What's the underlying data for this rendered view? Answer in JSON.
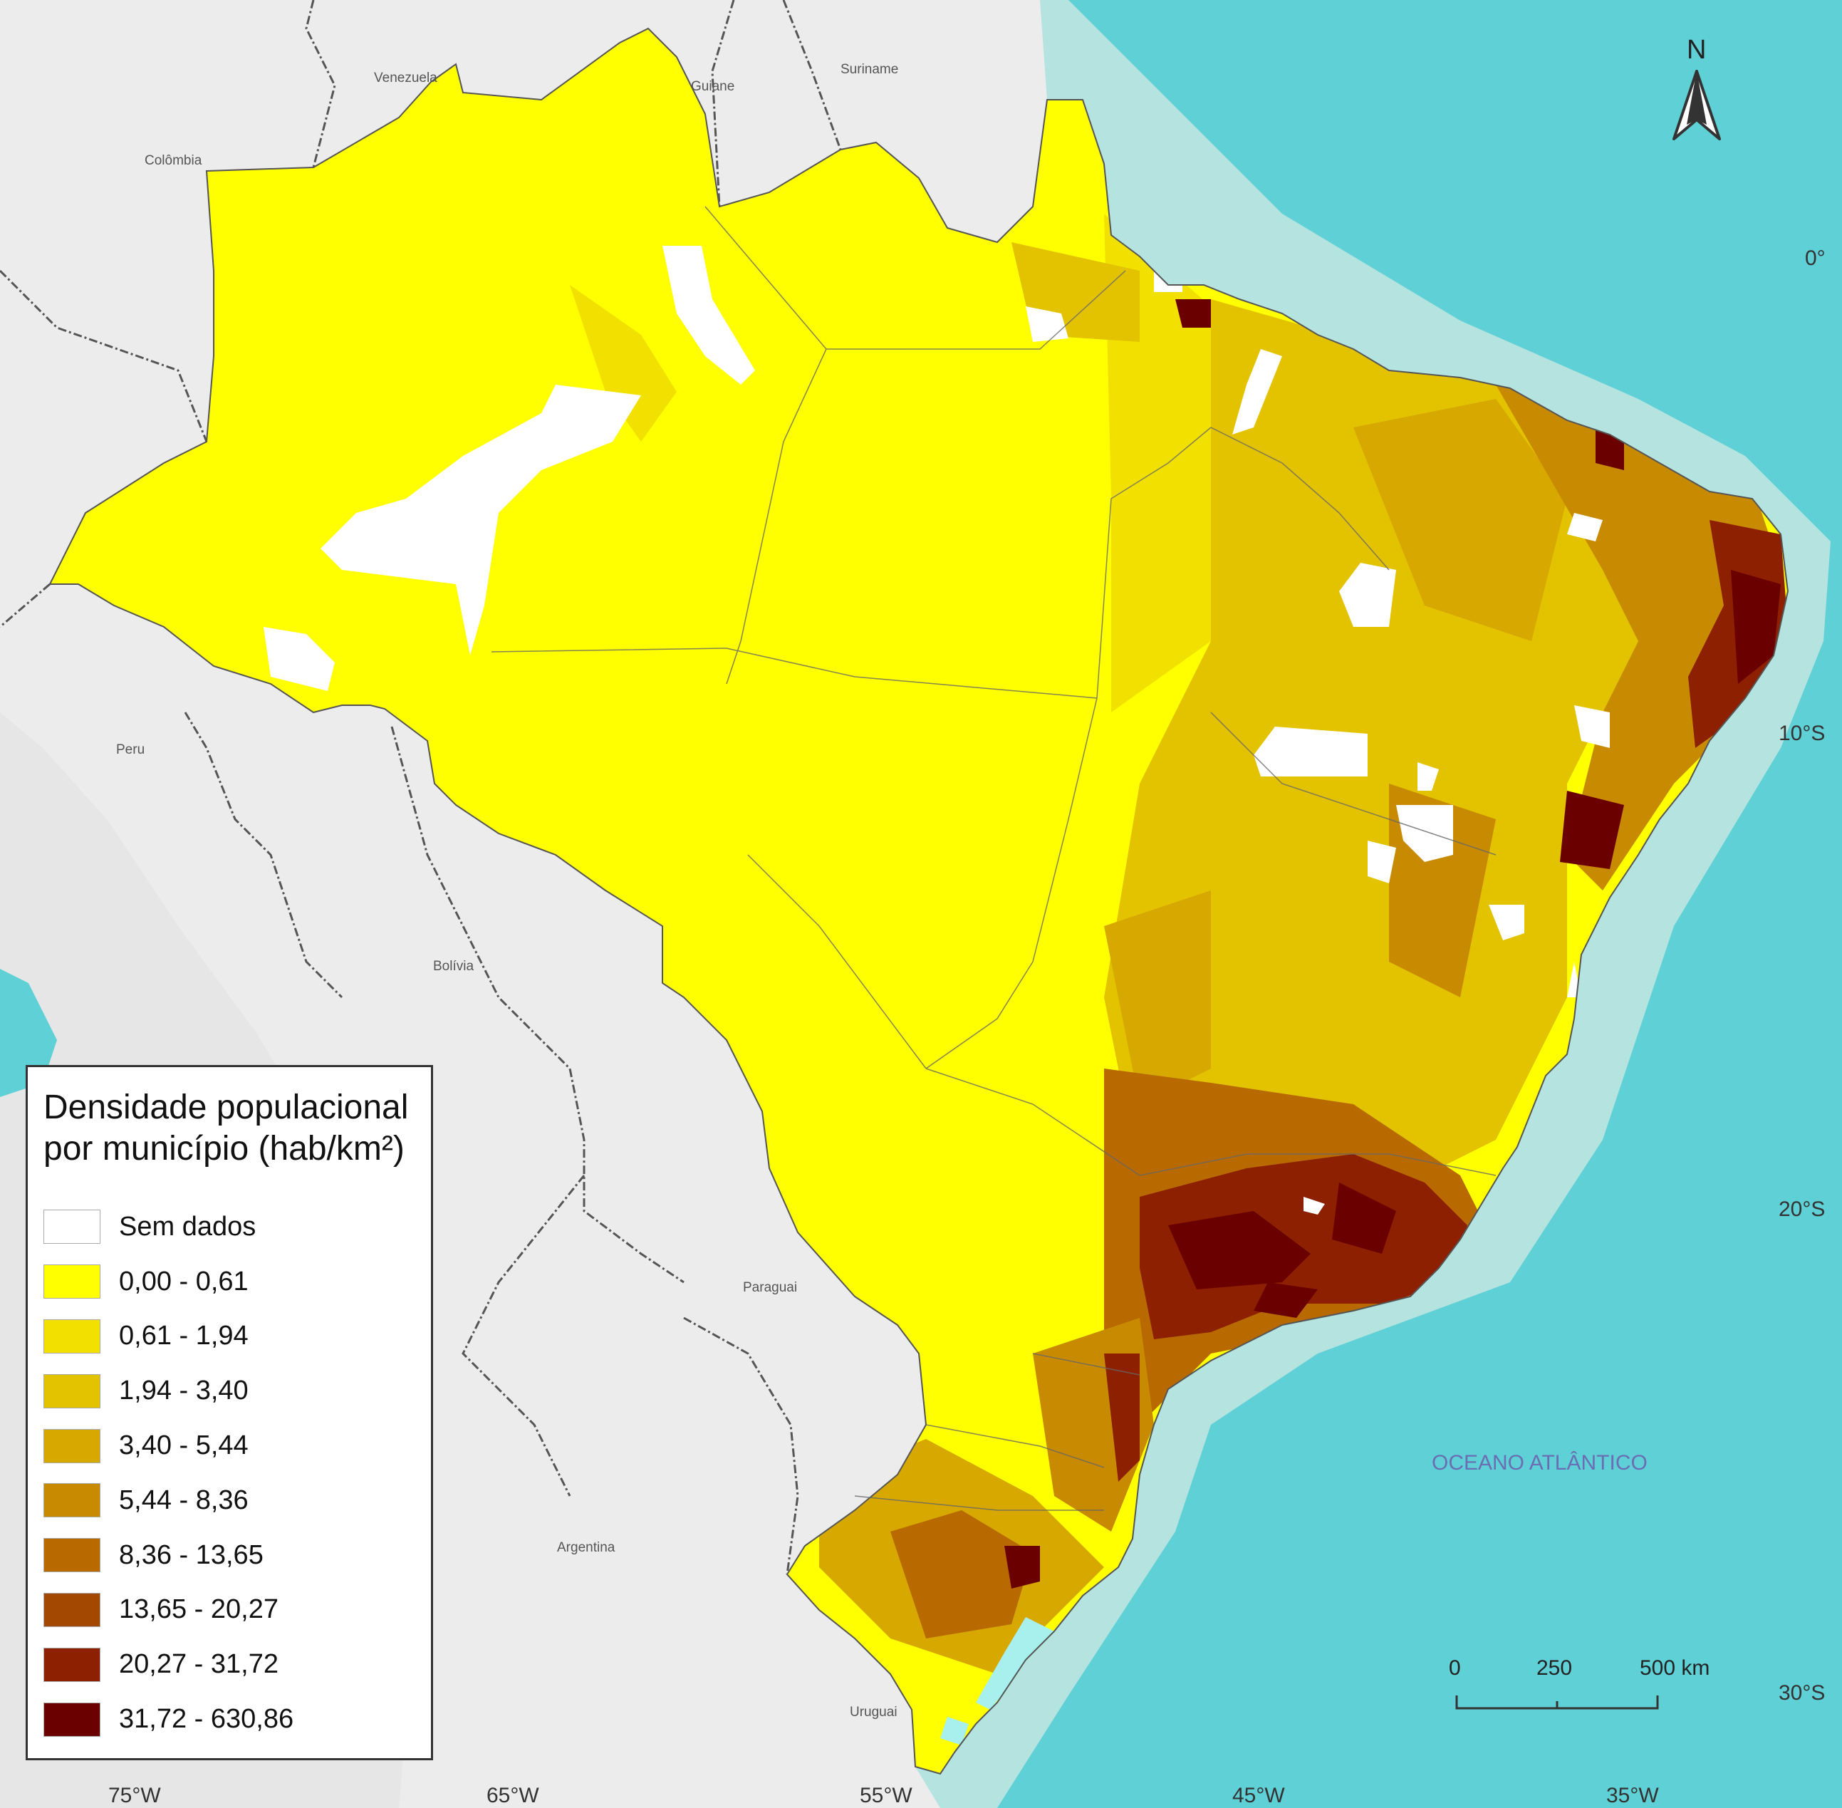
{
  "countries": [
    "Venezuela",
    "Guiane",
    "Suriname",
    "Colômbia",
    "Peru",
    "Bolívia",
    "Paraguai",
    "Argentina",
    "Uruguai"
  ],
  "ocean_label": "OCEANO ATLÂNTICO",
  "longitude_labels": [
    "75°W",
    "65°W",
    "55°W",
    "45°W",
    "35°W"
  ],
  "latitude_labels": [
    "0°",
    "10°S",
    "20°S",
    "30°S"
  ],
  "north_arrow": {
    "letter": "N",
    "icon": "north-arrow-icon"
  },
  "scale_bar": {
    "ticks": [
      "0",
      "250",
      "500 km"
    ]
  },
  "legend": {
    "title_line1": "Densidade populacional",
    "title_line2": "por município (hab/km²)",
    "classes": [
      {
        "label": "Sem dados",
        "color": "#ffffff"
      },
      {
        "label": "0,00 - 0,61",
        "color": "#ffff00"
      },
      {
        "label": "0,61 - 1,94",
        "color": "#f2e100"
      },
      {
        "label": "1,94 - 3,40",
        "color": "#e3c200"
      },
      {
        "label": "3,40 - 5,44",
        "color": "#d6a800"
      },
      {
        "label": "5,44 - 8,36",
        "color": "#c88a00"
      },
      {
        "label": "8,36 - 13,65",
        "color": "#b86a00"
      },
      {
        "label": "13,65 - 20,27",
        "color": "#a34800"
      },
      {
        "label": "20,27 - 31,72",
        "color": "#8c2000"
      },
      {
        "label": "31,72 - 630,86",
        "color": "#6b0000"
      }
    ]
  },
  "colors": {
    "land_neighbors": "#ececec",
    "ocean_deep": "#5fd0d6",
    "ocean_shelf": "#bfe6e3"
  }
}
